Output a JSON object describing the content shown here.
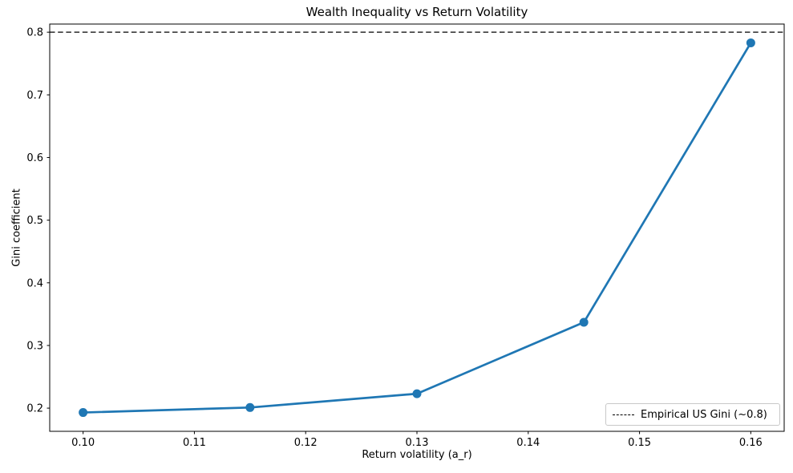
{
  "figure": {
    "background": "#ffffff"
  },
  "chart_data": {
    "type": "line",
    "title": "Wealth Inequality vs Return Volatility",
    "xlabel": "Return volatility (a_r)",
    "ylabel": "Gini coefficient",
    "x": [
      0.1,
      0.115,
      0.13,
      0.145,
      0.16
    ],
    "y": [
      0.193,
      0.201,
      0.223,
      0.337,
      0.783
    ],
    "series_color": "#1f77b4",
    "marker": "circle",
    "xlim": [
      0.097,
      0.163
    ],
    "ylim": [
      0.163,
      0.813
    ],
    "xticks": [
      0.1,
      0.11,
      0.12,
      0.13,
      0.14,
      0.15,
      0.16
    ],
    "xtick_labels": [
      "0.10",
      "0.11",
      "0.12",
      "0.13",
      "0.14",
      "0.15",
      "0.16"
    ],
    "yticks": [
      0.2,
      0.3,
      0.4,
      0.5,
      0.6,
      0.7,
      0.8
    ],
    "ytick_labels": [
      "0.2",
      "0.3",
      "0.4",
      "0.5",
      "0.6",
      "0.7",
      "0.8"
    ],
    "grid": false,
    "reference_line": {
      "value": 0.8,
      "style": "dashed",
      "color": "#000000"
    },
    "legend": {
      "position": "lower right",
      "entries": [
        {
          "label": "Empirical US Gini (~0.8)",
          "line_style": "dashed",
          "color": "#000000"
        }
      ]
    }
  }
}
